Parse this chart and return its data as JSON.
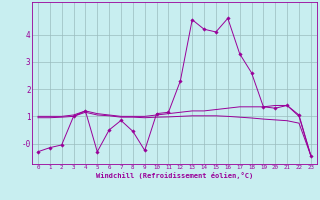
{
  "x": [
    0,
    1,
    2,
    3,
    4,
    5,
    6,
    7,
    8,
    9,
    10,
    11,
    12,
    13,
    14,
    15,
    16,
    17,
    18,
    19,
    20,
    21,
    22,
    23
  ],
  "line1": [
    -0.3,
    -0.15,
    -0.05,
    1.0,
    1.2,
    -0.3,
    0.5,
    0.85,
    0.45,
    -0.25,
    1.1,
    1.15,
    2.3,
    4.55,
    4.2,
    4.1,
    4.6,
    3.3,
    2.6,
    1.35,
    1.3,
    1.4,
    1.05,
    -0.45
  ],
  "line2": [
    1.0,
    1.0,
    1.0,
    1.05,
    1.2,
    1.1,
    1.05,
    1.0,
    1.0,
    1.0,
    1.05,
    1.1,
    1.15,
    1.2,
    1.2,
    1.25,
    1.3,
    1.35,
    1.35,
    1.35,
    1.4,
    1.4,
    1.0,
    -0.45
  ],
  "line3": [
    0.95,
    0.95,
    0.97,
    1.0,
    1.15,
    1.05,
    1.02,
    0.97,
    0.97,
    0.95,
    0.97,
    0.98,
    1.0,
    1.02,
    1.02,
    1.02,
    1.0,
    0.97,
    0.94,
    0.9,
    0.87,
    0.84,
    0.75,
    -0.45
  ],
  "color": "#990099",
  "bg_color": "#c8eef0",
  "grid_color": "#9bbcbe",
  "ylim": [
    -0.75,
    5.2
  ],
  "xlim": [
    -0.5,
    23.5
  ],
  "xlabel": "Windchill (Refroidissement éolien,°C)",
  "ytick_vals": [
    0.0,
    1.0,
    2.0,
    3.0,
    4.0
  ],
  "ytick_labels": [
    "-0",
    "1",
    "2",
    "3",
    "4"
  ],
  "marker": "D",
  "marker_size": 1.8,
  "line_width": 0.7
}
